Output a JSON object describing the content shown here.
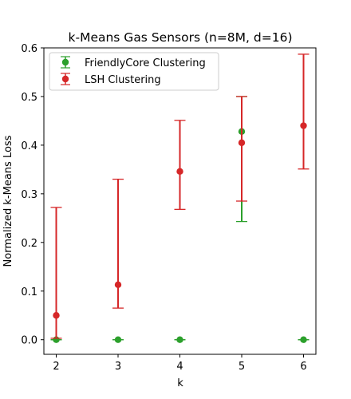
{
  "chart_data": {
    "type": "scatter",
    "title": "k-Means Gas Sensors (n=8M, d=16)",
    "xlabel": "k",
    "ylabel": "Normalized k-Means Loss",
    "x": [
      2,
      3,
      4,
      5,
      6
    ],
    "xlim": [
      1.8,
      6.2
    ],
    "ylim": [
      -0.03,
      0.6
    ],
    "xticks": [
      "2",
      "3",
      "4",
      "5",
      "6"
    ],
    "yticks": [
      "0.0",
      "0.1",
      "0.2",
      "0.3",
      "0.4",
      "0.5",
      "0.6"
    ],
    "ytick_values": [
      0.0,
      0.1,
      0.2,
      0.3,
      0.4,
      0.5,
      0.6
    ],
    "grid": false,
    "legend_position": "top-left",
    "series": [
      {
        "name": "FriendlyCore Clustering",
        "color": "#2ca02c",
        "values": [
          0.0,
          0.0,
          0.0,
          0.428,
          0.0
        ],
        "err_low": [
          0.0,
          0.0,
          0.0,
          0.243,
          0.0
        ],
        "err_high": [
          0.0,
          0.0,
          0.0,
          0.5,
          0.0
        ]
      },
      {
        "name": "LSH Clustering",
        "color": "#d62728",
        "values": [
          0.05,
          0.113,
          0.346,
          0.405,
          0.44
        ],
        "err_low": [
          0.003,
          0.065,
          0.268,
          0.285,
          0.351
        ],
        "err_high": [
          0.272,
          0.33,
          0.451,
          0.5,
          0.587
        ]
      }
    ]
  }
}
